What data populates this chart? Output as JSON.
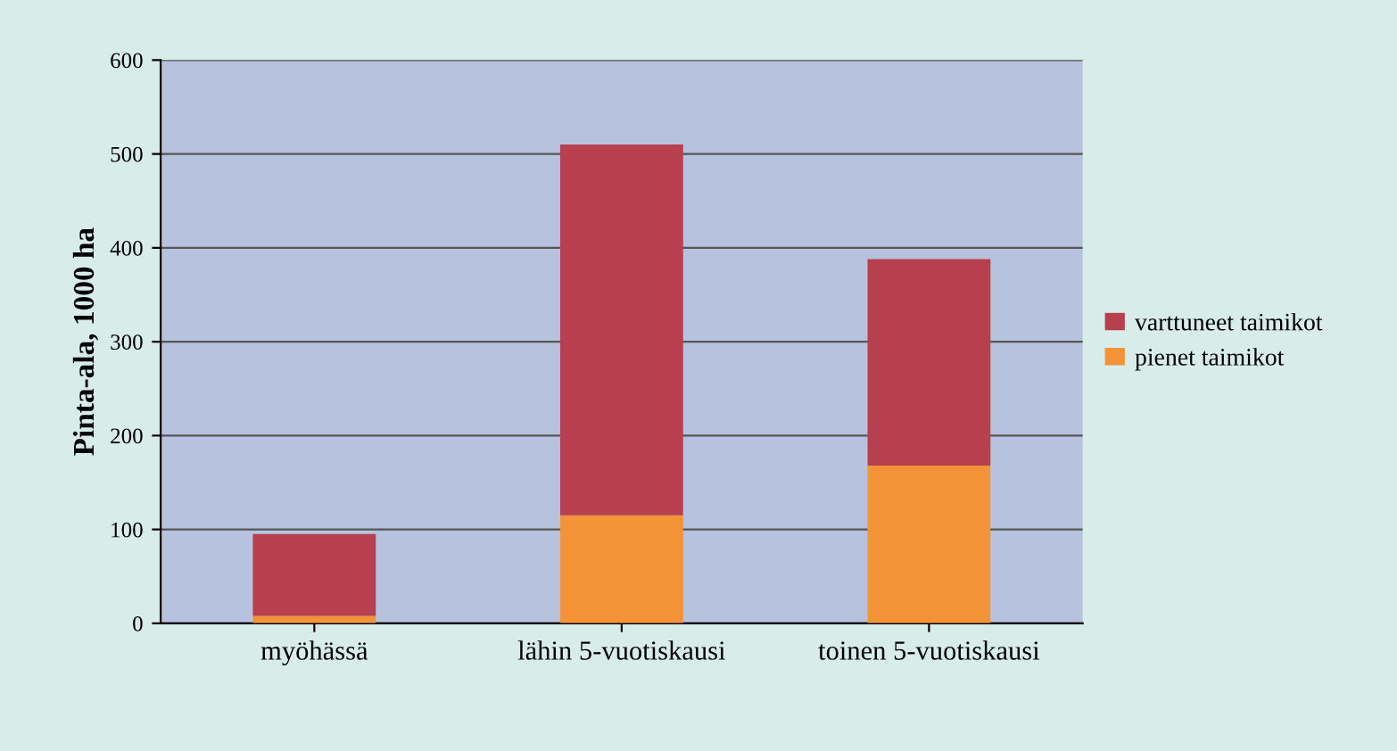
{
  "chart_data": {
    "type": "bar",
    "stacked": true,
    "ylabel": "Pinta-ala, 1000 ha",
    "categories": [
      "myöhässä",
      "lähin 5-vuotiskausi",
      "toinen 5-vuotiskausi"
    ],
    "series": [
      {
        "name": "pienet taimikot",
        "color": "#f39237",
        "values": [
          8,
          115,
          168
        ]
      },
      {
        "name": "varttuneet taimikot",
        "color": "#b8404e",
        "values": [
          87,
          395,
          220
        ]
      }
    ],
    "ylim": [
      0,
      600
    ],
    "yticks": [
      0,
      100,
      200,
      300,
      400,
      500,
      600
    ],
    "grid": "y",
    "legend": "right"
  }
}
